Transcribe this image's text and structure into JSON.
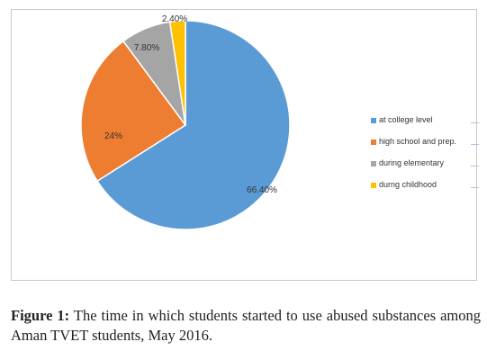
{
  "chart_data": {
    "type": "pie",
    "slices": [
      {
        "label": "at college level",
        "value": 66.4,
        "display": "66.40%",
        "color": "#5b9bd5"
      },
      {
        "label": "high school  and prep.",
        "value": 24,
        "display": "24%",
        "color": "#ed7d31"
      },
      {
        "label": "during elementary",
        "value": 7.8,
        "display": "7.80%",
        "color": "#a5a5a5"
      },
      {
        "label": "durng childhood",
        "value": 2.4,
        "display": "2.40%",
        "color": "#ffc000"
      }
    ],
    "legend_placement": "right"
  },
  "caption": {
    "label": "Figure 1:",
    "text": "The time in which students started to use abused substances among Aman TVET students, May 2016."
  }
}
